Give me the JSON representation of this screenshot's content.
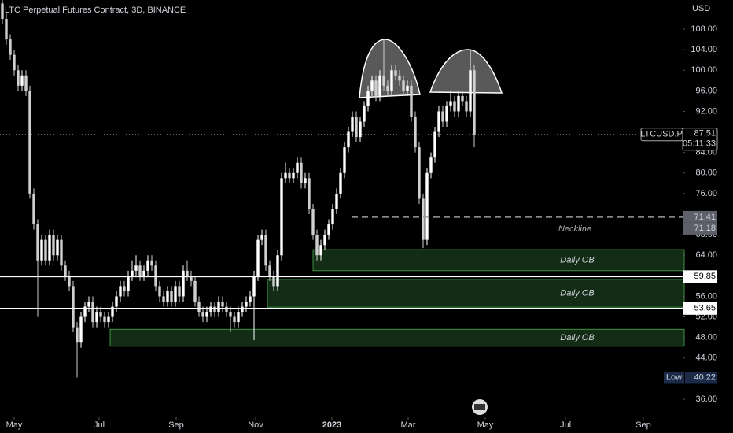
{
  "chart_data": {
    "type": "candlestick",
    "title": "LTC Perpetual Futures Contract, 3D, BINANCE",
    "currency": "USD",
    "up_color": "#ffffff",
    "down_color": "#cfcfcf",
    "zone_color": "#1f4a24",
    "xlim": [
      -0.6,
      173
    ],
    "ylim": [
      32.48,
      113.67
    ],
    "xticks": [
      {
        "value": 3.0,
        "label": "May"
      },
      {
        "value": 24.6,
        "label": "Jul"
      },
      {
        "value": 44.2,
        "label": "Sep"
      },
      {
        "value": 64.4,
        "label": "Nov"
      },
      {
        "value": 83.8,
        "label": "2023"
      },
      {
        "value": 103.2,
        "label": "Mar"
      },
      {
        "value": 122.8,
        "label": "May"
      },
      {
        "value": 143.2,
        "label": "Jul"
      },
      {
        "value": 163.0,
        "label": "Sep"
      }
    ],
    "yticks": [
      {
        "value": 108,
        "label": "108.00"
      },
      {
        "value": 104,
        "label": "104.00"
      },
      {
        "value": 100,
        "label": "100.00"
      },
      {
        "value": 96,
        "label": "96.00"
      },
      {
        "value": 92,
        "label": "92.00"
      },
      {
        "value": 84,
        "label": "84.00"
      },
      {
        "value": 80,
        "label": "80.00"
      },
      {
        "value": 76,
        "label": "76.00"
      },
      {
        "value": 68,
        "label": "68.00"
      },
      {
        "value": 64,
        "label": "64.00"
      },
      {
        "value": 56,
        "label": "56.00"
      },
      {
        "value": 52,
        "label": "52.00"
      },
      {
        "value": 48,
        "label": "48.00"
      },
      {
        "value": 44,
        "label": "44.00"
      },
      {
        "value": 36,
        "label": "36.00"
      }
    ],
    "candles": [
      [
        113,
        114,
        109,
        110
      ],
      [
        110,
        111,
        105,
        106
      ],
      [
        106,
        107,
        102,
        103
      ],
      [
        103,
        104,
        99,
        100
      ],
      [
        100,
        101,
        96,
        97
      ],
      [
        97,
        100,
        96,
        99
      ],
      [
        99,
        100,
        95,
        96
      ],
      [
        96,
        97,
        75,
        76
      ],
      [
        76,
        77,
        69,
        70
      ],
      [
        70,
        71,
        52,
        63
      ],
      [
        63,
        68,
        62,
        67
      ],
      [
        67,
        68,
        62,
        63
      ],
      [
        63,
        69,
        62,
        68
      ],
      [
        68,
        69,
        63,
        64
      ],
      [
        64,
        68,
        63,
        67
      ],
      [
        67,
        68,
        61,
        62
      ],
      [
        62,
        63,
        59,
        60
      ],
      [
        60,
        61,
        57,
        58
      ],
      [
        58,
        59,
        49,
        50
      ],
      [
        50,
        51,
        40.22,
        47
      ],
      [
        47,
        53,
        46,
        52
      ],
      [
        52,
        55,
        51,
        54
      ],
      [
        54,
        56,
        53,
        55
      ],
      [
        55,
        56,
        50,
        51
      ],
      [
        51,
        54,
        50,
        53
      ],
      [
        53,
        54,
        51,
        52
      ],
      [
        52,
        53,
        50,
        51
      ],
      [
        51,
        53,
        50,
        52
      ],
      [
        52,
        55,
        51,
        54
      ],
      [
        54,
        57,
        53,
        56
      ],
      [
        56,
        59,
        55,
        58
      ],
      [
        58,
        59,
        56,
        57
      ],
      [
        57,
        61,
        56,
        60
      ],
      [
        60,
        63,
        59,
        61
      ],
      [
        61,
        64,
        60,
        62
      ],
      [
        62,
        63,
        59,
        60
      ],
      [
        60,
        62,
        59,
        61
      ],
      [
        61,
        64,
        60,
        63
      ],
      [
        63,
        64,
        61,
        62
      ],
      [
        62,
        63,
        57,
        58
      ],
      [
        58,
        59,
        55,
        56
      ],
      [
        56,
        57,
        54,
        55
      ],
      [
        55,
        58,
        54,
        57
      ],
      [
        57,
        58,
        54,
        55
      ],
      [
        55,
        59,
        54,
        58
      ],
      [
        58,
        59,
        55,
        56
      ],
      [
        56,
        62,
        55,
        61
      ],
      [
        61,
        63,
        59,
        60
      ],
      [
        60,
        61,
        58,
        59
      ],
      [
        59,
        60,
        54,
        55
      ],
      [
        55,
        56,
        52,
        53
      ],
      [
        53,
        54,
        51,
        52
      ],
      [
        52,
        54,
        51,
        53
      ],
      [
        53,
        55,
        52,
        54
      ],
      [
        54,
        55,
        52,
        53
      ],
      [
        53,
        56,
        52,
        55
      ],
      [
        55,
        56,
        53,
        54
      ],
      [
        54,
        55,
        52,
        53
      ],
      [
        53,
        54,
        49,
        52
      ],
      [
        52,
        53,
        50,
        51
      ],
      [
        51,
        54,
        50,
        53
      ],
      [
        53,
        55,
        52,
        54
      ],
      [
        54,
        56,
        53,
        55
      ],
      [
        55,
        57,
        54,
        56
      ],
      [
        56,
        61,
        47.5,
        60
      ],
      [
        60,
        68,
        59,
        67
      ],
      [
        67,
        69,
        66,
        68
      ],
      [
        68,
        69,
        61,
        62
      ],
      [
        62,
        63,
        59,
        60
      ],
      [
        60,
        61,
        57,
        58
      ],
      [
        58,
        65,
        57,
        64
      ],
      [
        64,
        80,
        63,
        79
      ],
      [
        79,
        82,
        78,
        80
      ],
      [
        80,
        81,
        78,
        79
      ],
      [
        79,
        81,
        78,
        80
      ],
      [
        80,
        83,
        79,
        82
      ],
      [
        82,
        83,
        77,
        78
      ],
      [
        78,
        80,
        77,
        79
      ],
      [
        79,
        80,
        72,
        73
      ],
      [
        73,
        74,
        67,
        68
      ],
      [
        68,
        69,
        63,
        64
      ],
      [
        64,
        67,
        63,
        66
      ],
      [
        66,
        69,
        65,
        68
      ],
      [
        68,
        71,
        67,
        70
      ],
      [
        70,
        74,
        69,
        73
      ],
      [
        73,
        77,
        72,
        76
      ],
      [
        76,
        81,
        75,
        80
      ],
      [
        80,
        86,
        79,
        85
      ],
      [
        85,
        89,
        84,
        88
      ],
      [
        88,
        92,
        87,
        91
      ],
      [
        91,
        92,
        86,
        87
      ],
      [
        87,
        91,
        86,
        90
      ],
      [
        90,
        94,
        89,
        93
      ],
      [
        93,
        97,
        92,
        96
      ],
      [
        96,
        99,
        95,
        98
      ],
      [
        98,
        99,
        94,
        95
      ],
      [
        95,
        100,
        94,
        99
      ],
      [
        99,
        106,
        96,
        97
      ],
      [
        97,
        98,
        95,
        96
      ],
      [
        96,
        101,
        95,
        100
      ],
      [
        100,
        101,
        98,
        99
      ],
      [
        99,
        100,
        97,
        98
      ],
      [
        98,
        99,
        95,
        96
      ],
      [
        96,
        98,
        95,
        97
      ],
      [
        97,
        98,
        90,
        91
      ],
      [
        91,
        92,
        84,
        85
      ],
      [
        85,
        86,
        74,
        75
      ],
      [
        75,
        76,
        65.4,
        67
      ],
      [
        67,
        81,
        66,
        80
      ],
      [
        80,
        84,
        79,
        83
      ],
      [
        83,
        89,
        82,
        88
      ],
      [
        88,
        93,
        87,
        92
      ],
      [
        92,
        93,
        89,
        90
      ],
      [
        90,
        94,
        89,
        93
      ],
      [
        93,
        96,
        92,
        94
      ],
      [
        94,
        95,
        91,
        92
      ],
      [
        92,
        96,
        91,
        95
      ],
      [
        95,
        96,
        93,
        94
      ],
      [
        94,
        95,
        91,
        92
      ],
      [
        92,
        104,
        91,
        100
      ],
      [
        100,
        101,
        85,
        87.51
      ]
    ],
    "zones": [
      {
        "label": "Daily OB",
        "from": 79,
        "top": 65.1,
        "bottom": 61.0
      },
      {
        "label": "Daily OB",
        "from": 67.4,
        "top": 59.3,
        "bottom": 53.9
      },
      {
        "label": "Daily OB",
        "from": 27.4,
        "top": 49.6,
        "bottom": 46.3
      }
    ],
    "levels": [
      59.85,
      53.65
    ],
    "neckline": {
      "label": "Neckline",
      "value": 71.41,
      "from": 88.8
    },
    "extra_price": 71.18,
    "last_price": {
      "symbol": "LTCUSD.P",
      "value": 87.51,
      "countdown": "05:11:33"
    },
    "low": {
      "label": "Low",
      "value": 40.22
    }
  }
}
